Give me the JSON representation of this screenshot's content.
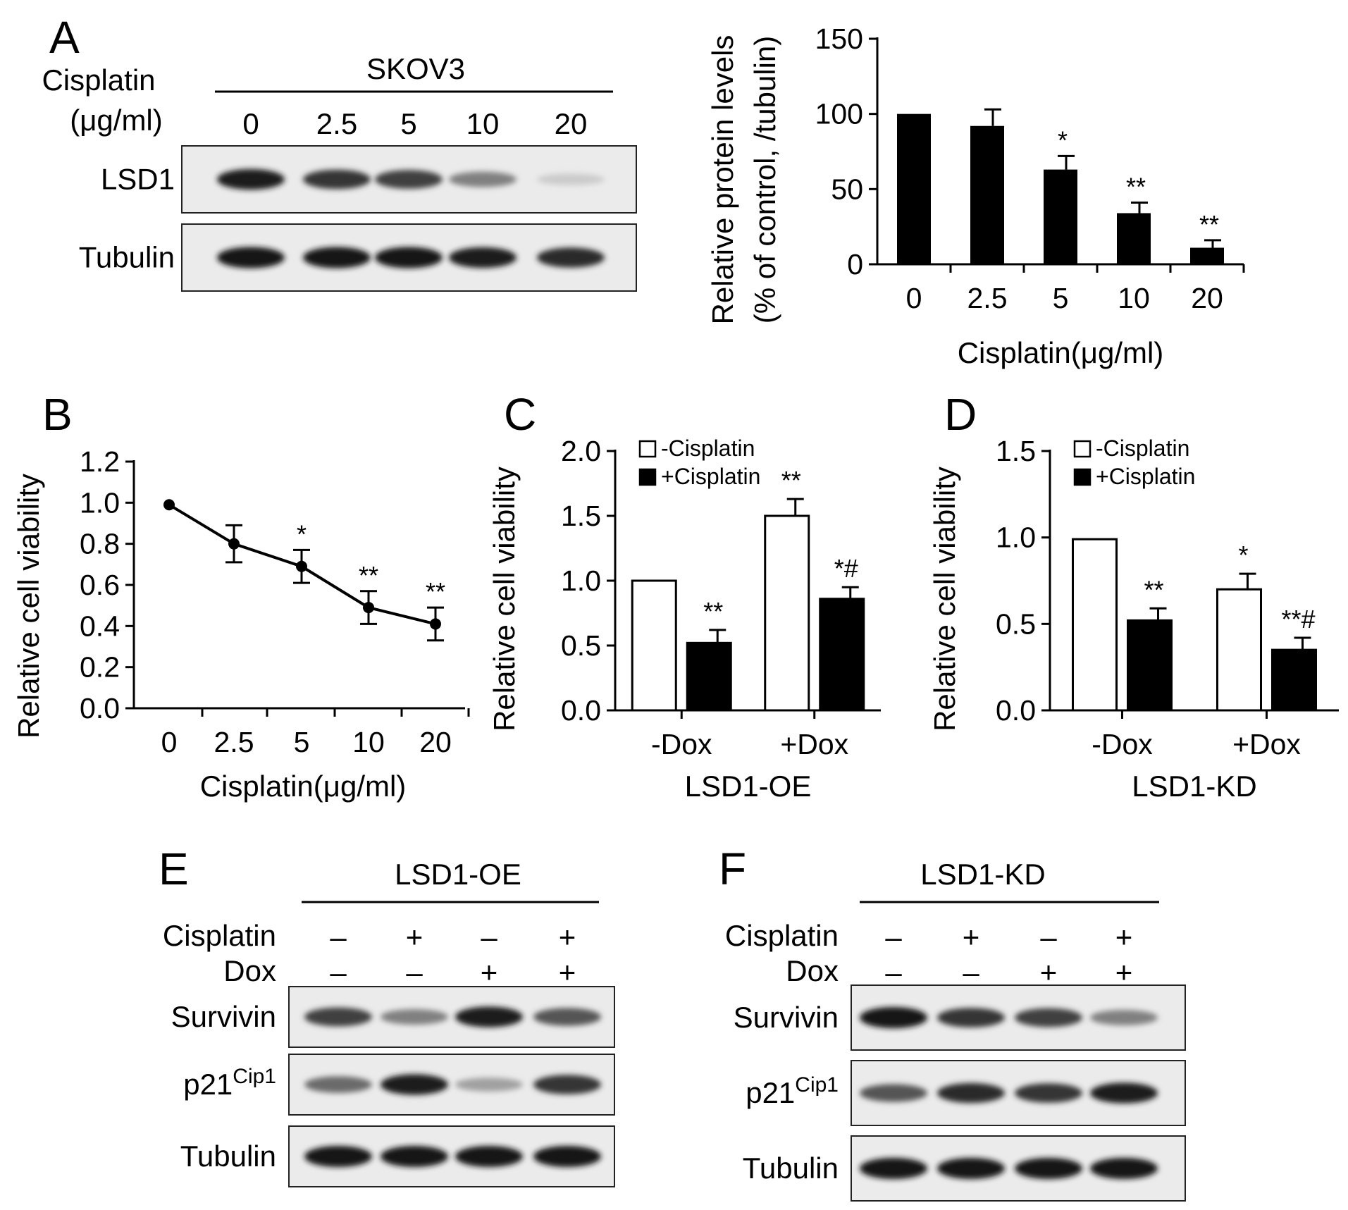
{
  "panels": {
    "A": {
      "letter": "A",
      "blot": {
        "row_header": [
          "Cisplatin",
          "(μg/ml)"
        ],
        "cell_line": "SKOV3",
        "lanes": [
          "0",
          "2.5",
          "5",
          "10",
          "20"
        ],
        "bands": [
          {
            "label": "LSD1",
            "intensity": [
              0.95,
              0.85,
              0.8,
              0.5,
              0.15
            ]
          },
          {
            "label": "Tubulin",
            "intensity": [
              1,
              1,
              1,
              0.95,
              0.9
            ]
          }
        ]
      }
    },
    "B": {
      "letter": "B"
    },
    "C": {
      "letter": "C"
    },
    "D": {
      "letter": "D"
    },
    "E": {
      "letter": "E",
      "blot": {
        "group": "LSD1-OE",
        "conditions": [
          {
            "label": "Cisplatin",
            "signs": [
              "–",
              "+",
              "–",
              "+"
            ]
          },
          {
            "label": "Dox",
            "signs": [
              "–",
              "–",
              "+",
              "+"
            ]
          }
        ],
        "bands": [
          {
            "label": "Survivin",
            "label_sup": "",
            "intensity": [
              0.8,
              0.5,
              0.95,
              0.7
            ]
          },
          {
            "label": "p21",
            "label_sup": "Cip1",
            "intensity": [
              0.6,
              0.95,
              0.35,
              0.85
            ]
          },
          {
            "label": "Tubulin",
            "label_sup": "",
            "intensity": [
              1,
              1,
              1,
              1
            ]
          }
        ]
      }
    },
    "F": {
      "letter": "F",
      "blot": {
        "group": "LSD1-KD",
        "conditions": [
          {
            "label": "Cisplatin",
            "signs": [
              "–",
              "+",
              "–",
              "+"
            ]
          },
          {
            "label": "Dox",
            "signs": [
              "–",
              "–",
              "+",
              "+"
            ]
          }
        ],
        "bands": [
          {
            "label": "Survivin",
            "label_sup": "",
            "intensity": [
              1,
              0.85,
              0.8,
              0.5
            ]
          },
          {
            "label": "p21",
            "label_sup": "Cip1",
            "intensity": [
              0.7,
              0.9,
              0.85,
              0.95
            ]
          },
          {
            "label": "Tubulin",
            "label_sup": "",
            "intensity": [
              1,
              1,
              1,
              1
            ]
          }
        ]
      }
    }
  },
  "chart_data": [
    {
      "panel": "A",
      "type": "bar",
      "categories": [
        "0",
        "2.5",
        "5",
        "10",
        "20"
      ],
      "values": [
        100,
        92,
        63,
        34,
        11
      ],
      "errors": [
        0,
        11,
        9,
        7,
        5
      ],
      "annotations": [
        "",
        "",
        "*",
        "**",
        "**"
      ],
      "ylabel": "Relative protein levels",
      "ylabel2": "(% of control, /tubulin)",
      "xlabel": "Cisplatin(μg/ml)",
      "ylim": [
        0,
        150
      ],
      "yticks": [
        0,
        50,
        100,
        150
      ],
      "color": "#000000"
    },
    {
      "panel": "B",
      "type": "line",
      "categories": [
        "0",
        "2.5",
        "5",
        "10",
        "20"
      ],
      "values": [
        0.99,
        0.8,
        0.69,
        0.49,
        0.41
      ],
      "errors": [
        0,
        0.09,
        0.08,
        0.08,
        0.08
      ],
      "annotations": [
        "",
        "",
        "*",
        "**",
        "**"
      ],
      "ylabel": "Relative cell viability",
      "xlabel": "Cisplatin(μg/ml)",
      "ylim": [
        0,
        1.2
      ],
      "yticks": [
        "0.0",
        "0.2",
        "0.4",
        "0.6",
        "0.8",
        "1.0",
        "1.2"
      ]
    },
    {
      "panel": "C",
      "type": "bar",
      "categories": [
        "-Dox",
        "+Dox"
      ],
      "series": [
        {
          "name": "-Cisplatin",
          "values": [
            1.0,
            1.5
          ],
          "errors": [
            0,
            0.13
          ],
          "annotations": [
            "",
            "**"
          ],
          "fill": "#ffffff"
        },
        {
          "name": "+Cisplatin",
          "values": [
            0.52,
            0.86
          ],
          "errors": [
            0.1,
            0.09
          ],
          "annotations": [
            "**",
            "*#"
          ],
          "fill": "#000000"
        }
      ],
      "ylabel": "Relative cell viability",
      "xlabel": "LSD1-OE",
      "ylim": [
        0,
        2.0
      ],
      "yticks": [
        "0.0",
        "0.5",
        "1.0",
        "1.5",
        "2.0"
      ],
      "legend": "top-left"
    },
    {
      "panel": "D",
      "type": "bar",
      "categories": [
        "-Dox",
        "+Dox"
      ],
      "series": [
        {
          "name": "-Cisplatin",
          "values": [
            0.99,
            0.7
          ],
          "errors": [
            0,
            0.09
          ],
          "annotations": [
            "",
            "*"
          ],
          "fill": "#ffffff"
        },
        {
          "name": "+Cisplatin",
          "values": [
            0.52,
            0.35
          ],
          "errors": [
            0.07,
            0.07
          ],
          "annotations": [
            "**",
            "**#"
          ],
          "fill": "#000000"
        }
      ],
      "ylabel": "Relative cell viability",
      "xlabel": "LSD1-KD",
      "ylim": [
        0,
        1.5
      ],
      "yticks": [
        "0.0",
        "0.5",
        "1.0",
        "1.5"
      ],
      "legend": "top-left"
    }
  ]
}
